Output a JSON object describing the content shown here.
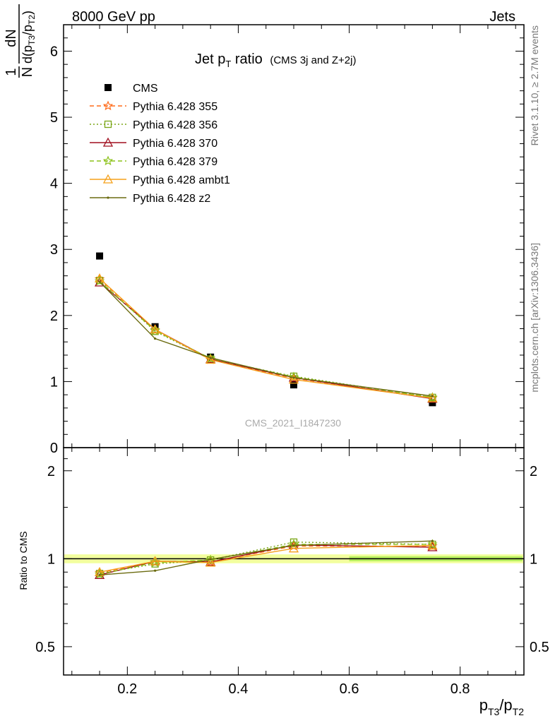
{
  "header": {
    "left": "8000 GeV pp",
    "right": "Jets"
  },
  "title": {
    "main": "Jet p",
    "main_sub": "T",
    "main_tail": " ratio",
    "small": "(CMS 3j and Z+2j)"
  },
  "side_labels": {
    "rivet": "Rivet 3.1.10, ≥ 2.7M events",
    "mcplots": "mcplots.cern.ch [arXiv:1306.3436]"
  },
  "watermark": "CMS_2021_I1847230",
  "axes": {
    "y_top": {
      "frac_num": "1",
      "frac_den": "N",
      "d_num": "dN",
      "d_den": "d(p",
      "d_den_sub1": "T3",
      "d_den_mid": "/p",
      "d_den_sub2": "T2",
      "d_den_end": ")"
    },
    "y_bottom": "Ratio to CMS",
    "x": {
      "p1": "p",
      "s1": "T3",
      "mid": "/p",
      "s2": "T2"
    },
    "top_ticks": [
      "0",
      "1",
      "2",
      "3",
      "4",
      "5",
      "6"
    ],
    "ratio_ticks_left": [
      "0.5",
      "1",
      "2"
    ],
    "ratio_ticks_right": [
      "0.5",
      "1",
      "2"
    ],
    "x_ticks": [
      "0.2",
      "0.4",
      "0.6",
      "0.8"
    ]
  },
  "chart_data": [
    {
      "type": "scatter",
      "panel": "main",
      "ylim": [
        0,
        6.4
      ],
      "xlim": [
        0.085,
        0.915
      ],
      "x": [
        0.15,
        0.25,
        0.35,
        0.5,
        0.75
      ],
      "series": [
        {
          "name": "CMS",
          "values": [
            2.9,
            1.83,
            1.37,
            0.95,
            0.68
          ],
          "color": "#000000",
          "marker": "square",
          "dash": ""
        },
        {
          "name": "Pythia 6.428 355",
          "values": [
            2.55,
            1.78,
            1.33,
            1.05,
            0.75
          ],
          "color": "#ff6b1a",
          "marker": "star",
          "dash": "6,4"
        },
        {
          "name": "Pythia 6.428 356",
          "values": [
            2.53,
            1.76,
            1.34,
            1.08,
            0.76
          ],
          "color": "#7aa516",
          "marker": "square-open",
          "dash": "2,3"
        },
        {
          "name": "Pythia 6.428 370",
          "values": [
            2.5,
            1.79,
            1.34,
            1.06,
            0.74
          ],
          "color": "#a00f1f",
          "marker": "triangle-open",
          "dash": ""
        },
        {
          "name": "Pythia 6.428 379",
          "values": [
            2.52,
            1.77,
            1.35,
            1.07,
            0.76
          ],
          "color": "#8cc21a",
          "marker": "star",
          "dash": "6,4"
        },
        {
          "name": "Pythia 6.428 ambt1",
          "values": [
            2.56,
            1.79,
            1.33,
            1.03,
            0.75
          ],
          "color": "#f5a01a",
          "marker": "triangle-open",
          "dash": ""
        },
        {
          "name": "Pythia 6.428 z2",
          "values": [
            2.51,
            1.65,
            1.36,
            1.06,
            0.78
          ],
          "color": "#6b6b10",
          "marker": "dot",
          "dash": ""
        }
      ]
    },
    {
      "type": "line",
      "panel": "ratio",
      "ylim": [
        0.4,
        2.4
      ],
      "scale": "log",
      "xlim": [
        0.085,
        0.915
      ],
      "x": [
        0.15,
        0.25,
        0.35,
        0.5,
        0.75
      ],
      "series": [
        {
          "name": "Pythia 6.428 355",
          "values": [
            0.895,
            0.975,
            0.975,
            1.105,
            1.105
          ],
          "color": "#ff6b1a",
          "marker": "star",
          "dash": "6,4"
        },
        {
          "name": "Pythia 6.428 356",
          "values": [
            0.89,
            0.96,
            0.99,
            1.14,
            1.12
          ],
          "color": "#7aa516",
          "marker": "square-open",
          "dash": "2,3"
        },
        {
          "name": "Pythia 6.428 370",
          "values": [
            0.88,
            0.98,
            0.975,
            1.115,
            1.095
          ],
          "color": "#a00f1f",
          "marker": "triangle-open",
          "dash": ""
        },
        {
          "name": "Pythia 6.428 379",
          "values": [
            0.885,
            0.97,
            0.99,
            1.12,
            1.12
          ],
          "color": "#8cc21a",
          "marker": "star",
          "dash": "6,4"
        },
        {
          "name": "Pythia 6.428 ambt1",
          "values": [
            0.9,
            0.98,
            0.97,
            1.085,
            1.11
          ],
          "color": "#f5a01a",
          "marker": "triangle-open",
          "dash": ""
        },
        {
          "name": "Pythia 6.428 z2",
          "values": [
            0.88,
            0.91,
            0.995,
            1.11,
            1.15
          ],
          "color": "#6b6b10",
          "marker": "dot",
          "dash": ""
        }
      ]
    }
  ]
}
